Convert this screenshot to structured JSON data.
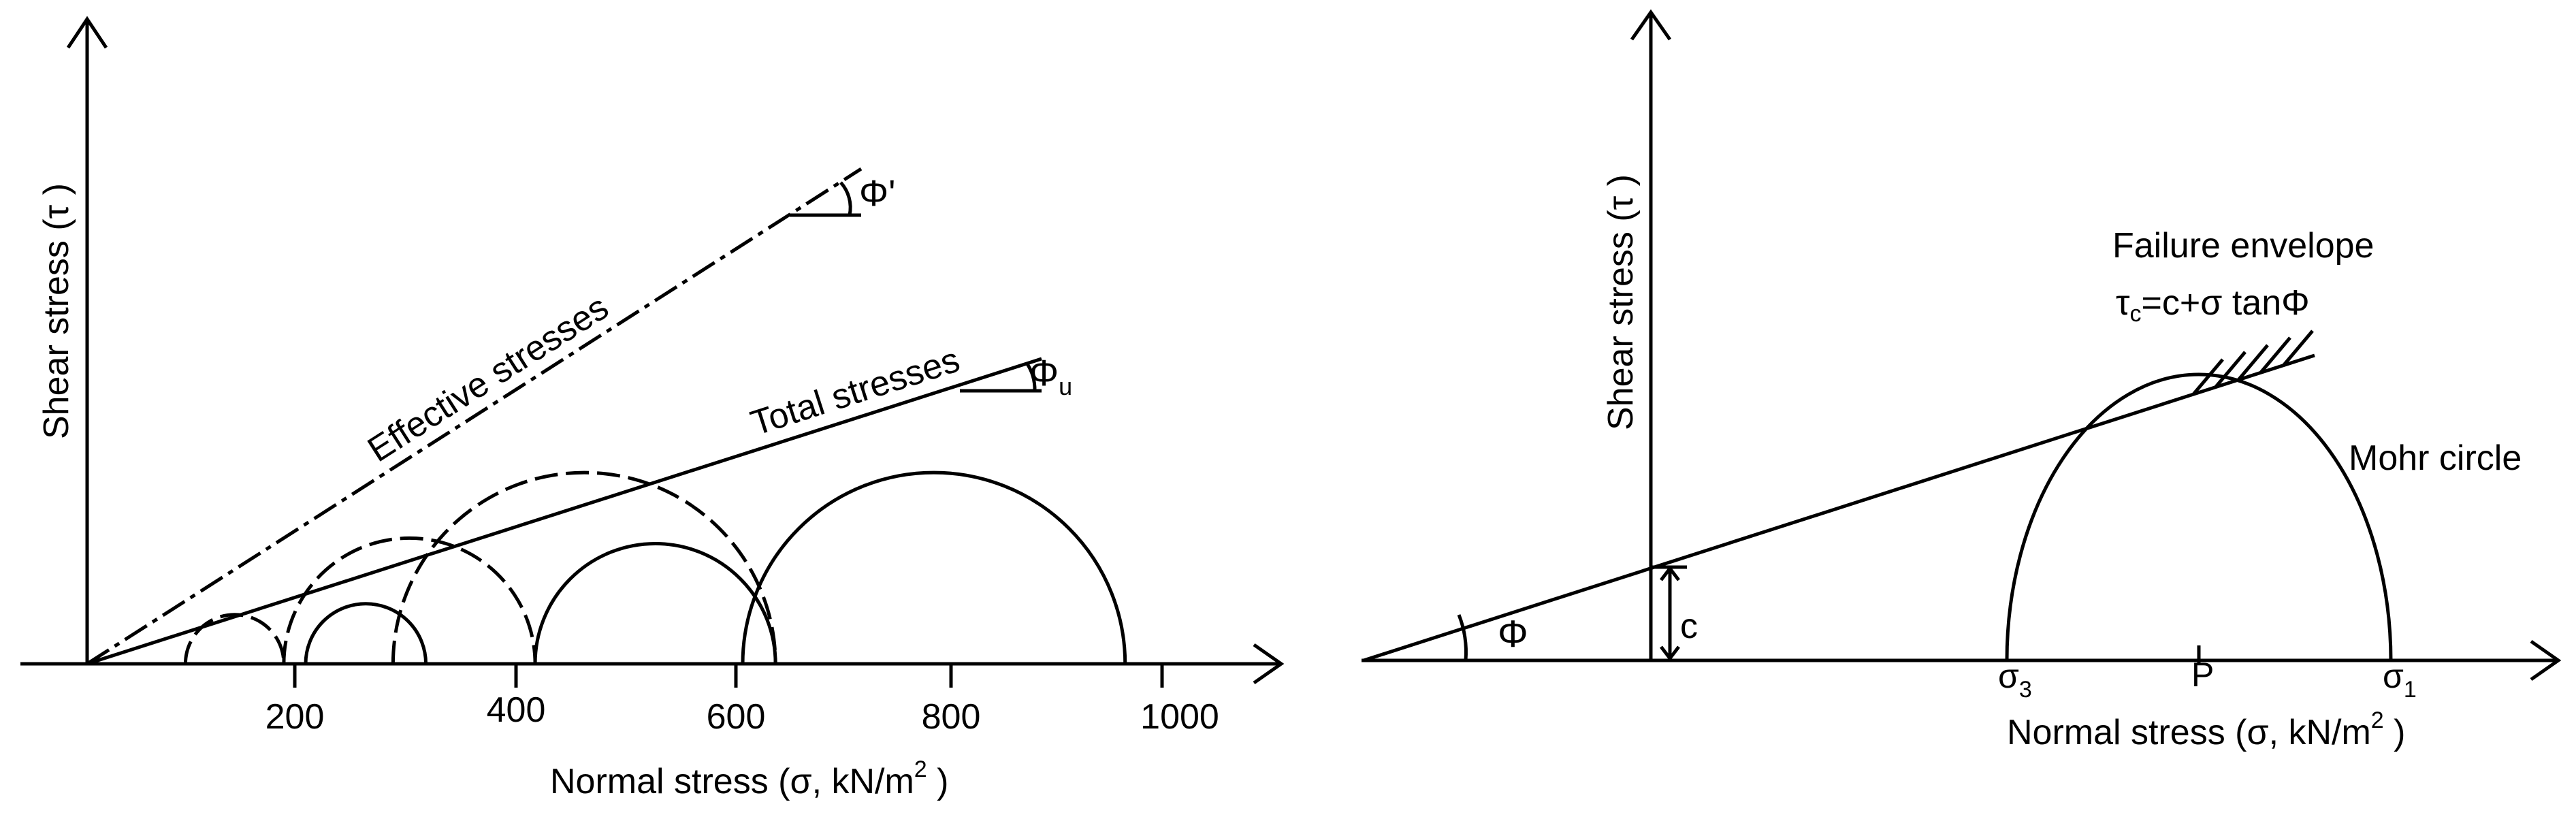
{
  "left_diagram": {
    "y_axis_label": "Shear stress (τ )",
    "x_axis_label_main": "Normal stress (σ, kN/m",
    "x_axis_label_sup": "2",
    "x_axis_label_end": " )",
    "x_ticks": [
      "200",
      "400",
      "600",
      "800",
      "1000"
    ],
    "effective_label": "Effective  stresses",
    "total_label": "Total  stresses",
    "phi_prime_label": "Φ'",
    "phi_u_main": "Φ",
    "phi_u_sub": "u",
    "total_circles_sigma": [
      [
        200,
        310
      ],
      [
        410,
        630
      ],
      [
        600,
        950
      ]
    ],
    "effective_circles_sigma": [
      [
        90,
        180
      ],
      [
        180,
        410
      ],
      [
        280,
        630
      ]
    ]
  },
  "right_diagram": {
    "y_axis_label": "Shear stress (τ )",
    "x_axis_label_main": "Normal stress (σ, kN/m",
    "x_axis_label_sup": "2",
    "x_axis_label_end": " )",
    "failure_envelope_label": "Failure envelope",
    "equation_tau": "τ",
    "equation_sub": "c",
    "equation_rest": "=c+σ tanΦ",
    "mohr_circle_label": "Mohr circle",
    "phi_label": "Φ",
    "c_label": "c",
    "sigma3_main": "σ",
    "sigma3_sub": "3",
    "p_label": "P",
    "sigma1_main": "σ",
    "sigma1_sub": "1"
  }
}
